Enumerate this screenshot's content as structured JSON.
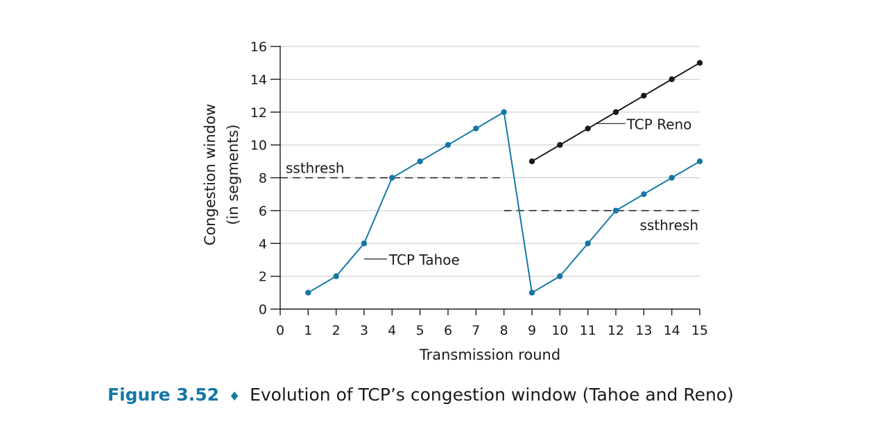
{
  "chart_data": {
    "type": "line",
    "xlabel": "Transmission round",
    "ylabel_line1": "Congestion window",
    "ylabel_line2": "(in segments)",
    "xlim": [
      0,
      15
    ],
    "ylim": [
      0,
      16
    ],
    "x_ticks": [
      0,
      1,
      2,
      3,
      4,
      5,
      6,
      7,
      8,
      9,
      10,
      11,
      12,
      13,
      14,
      15
    ],
    "y_ticks": [
      0,
      2,
      4,
      6,
      8,
      10,
      12,
      14,
      16
    ],
    "grid": "horizontal",
    "series": [
      {
        "name": "TCP Tahoe",
        "color": "#1477a6",
        "x": [
          1,
          2,
          3,
          4,
          5,
          6,
          7,
          8,
          9,
          10,
          11,
          12,
          13,
          14,
          15
        ],
        "y": [
          1,
          2,
          4,
          8,
          9,
          10,
          11,
          12,
          1,
          2,
          4,
          6,
          7,
          8,
          9
        ]
      },
      {
        "name": "TCP Reno",
        "color": "#1a1a1a",
        "x": [
          9,
          10,
          11,
          12,
          13,
          14,
          15
        ],
        "y": [
          9,
          10,
          11,
          12,
          13,
          14,
          15
        ]
      }
    ],
    "thresholds": [
      {
        "label": "ssthresh",
        "y": 8,
        "x_start": 0,
        "x_end": 8
      },
      {
        "label": "ssthresh",
        "y": 6,
        "x_start": 8,
        "x_end": 15
      }
    ]
  },
  "caption": {
    "label": "Figure 3.52",
    "separator": "♦",
    "text": "Evolution of TCP’s congestion window (Tahoe and Reno)"
  }
}
